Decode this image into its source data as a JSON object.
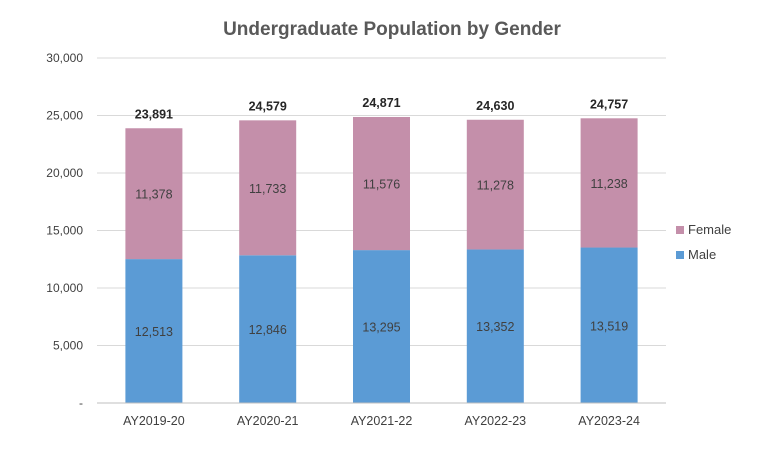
{
  "chart_data": {
    "type": "bar",
    "stacked": true,
    "title": "Undergraduate Population by Gender",
    "categories": [
      "AY2019-20",
      "AY2020-21",
      "AY2021-22",
      "AY2022-23",
      "AY2023-24"
    ],
    "series": [
      {
        "name": "Male",
        "values": [
          12513,
          12846,
          13295,
          13352,
          13519
        ],
        "color": "#5B9BD5"
      },
      {
        "name": "Female",
        "values": [
          11378,
          11733,
          11576,
          11278,
          11238
        ],
        "color": "#C48FAA"
      }
    ],
    "totals": [
      23891,
      24579,
      24871,
      24630,
      24757
    ],
    "ylim": [
      0,
      30000
    ],
    "yticks": [
      0,
      5000,
      10000,
      15000,
      20000,
      25000,
      30000
    ],
    "ytick_labels": [
      "-",
      "5,000",
      "10,000",
      "15,000",
      "20,000",
      "25,000",
      "30,000"
    ],
    "grid": true,
    "legend_position": "right"
  }
}
